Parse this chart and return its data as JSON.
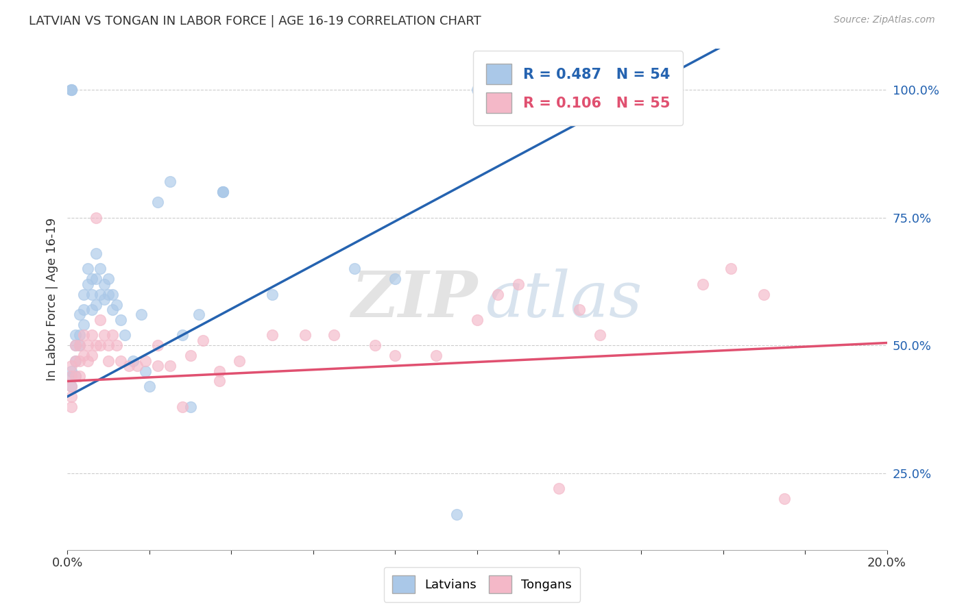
{
  "title": "LATVIAN VS TONGAN IN LABOR FORCE | AGE 16-19 CORRELATION CHART",
  "source": "Source: ZipAtlas.com",
  "ylabel": "In Labor Force | Age 16-19",
  "xlim": [
    0.0,
    0.2
  ],
  "ylim": [
    0.1,
    1.08
  ],
  "right_yticks": [
    1.0,
    0.75,
    0.5,
    0.25
  ],
  "right_yticklabels": [
    "100.0%",
    "75.0%",
    "50.0%",
    "25.0%"
  ],
  "latvian_R": 0.487,
  "latvian_N": 54,
  "tongan_R": 0.106,
  "tongan_N": 55,
  "latvian_color": "#aac8e8",
  "tongan_color": "#f4b8c8",
  "latvian_line_color": "#2563b0",
  "tongan_line_color": "#e05070",
  "watermark_zip": "ZIP",
  "watermark_atlas": "atlas",
  "background_color": "#ffffff",
  "latvian_x": [
    0.001,
    0.001,
    0.001,
    0.001,
    0.001,
    0.001,
    0.002,
    0.002,
    0.002,
    0.002,
    0.003,
    0.003,
    0.003,
    0.004,
    0.004,
    0.004,
    0.005,
    0.005,
    0.006,
    0.006,
    0.006,
    0.007,
    0.007,
    0.007,
    0.008,
    0.008,
    0.009,
    0.009,
    0.01,
    0.01,
    0.011,
    0.011,
    0.012,
    0.013,
    0.014,
    0.016,
    0.018,
    0.019,
    0.02,
    0.022,
    0.025,
    0.028,
    0.03,
    0.032,
    0.038,
    0.038,
    0.038,
    0.05,
    0.07,
    0.08,
    0.095,
    0.1,
    0.13,
    0.143
  ],
  "latvian_y": [
    1.0,
    1.0,
    1.0,
    0.45,
    0.44,
    0.42,
    0.52,
    0.5,
    0.47,
    0.44,
    0.56,
    0.52,
    0.5,
    0.6,
    0.57,
    0.54,
    0.65,
    0.62,
    0.63,
    0.6,
    0.57,
    0.68,
    0.63,
    0.58,
    0.65,
    0.6,
    0.62,
    0.59,
    0.63,
    0.6,
    0.6,
    0.57,
    0.58,
    0.55,
    0.52,
    0.47,
    0.56,
    0.45,
    0.42,
    0.78,
    0.82,
    0.52,
    0.38,
    0.56,
    0.8,
    0.8,
    0.8,
    0.6,
    0.65,
    0.63,
    0.17,
    1.0,
    1.0,
    1.0
  ],
  "tongan_x": [
    0.001,
    0.001,
    0.001,
    0.001,
    0.001,
    0.002,
    0.002,
    0.002,
    0.003,
    0.003,
    0.003,
    0.004,
    0.004,
    0.005,
    0.005,
    0.006,
    0.006,
    0.007,
    0.007,
    0.008,
    0.008,
    0.009,
    0.01,
    0.01,
    0.011,
    0.012,
    0.013,
    0.015,
    0.017,
    0.019,
    0.022,
    0.022,
    0.025,
    0.028,
    0.03,
    0.033,
    0.037,
    0.037,
    0.042,
    0.05,
    0.058,
    0.065,
    0.075,
    0.08,
    0.09,
    0.1,
    0.105,
    0.11,
    0.12,
    0.125,
    0.13,
    0.155,
    0.162,
    0.17,
    0.175
  ],
  "tongan_y": [
    0.46,
    0.44,
    0.42,
    0.4,
    0.38,
    0.5,
    0.47,
    0.44,
    0.5,
    0.47,
    0.44,
    0.52,
    0.48,
    0.5,
    0.47,
    0.52,
    0.48,
    0.75,
    0.5,
    0.55,
    0.5,
    0.52,
    0.5,
    0.47,
    0.52,
    0.5,
    0.47,
    0.46,
    0.46,
    0.47,
    0.5,
    0.46,
    0.46,
    0.38,
    0.48,
    0.51,
    0.45,
    0.43,
    0.47,
    0.52,
    0.52,
    0.52,
    0.5,
    0.48,
    0.48,
    0.55,
    0.6,
    0.62,
    0.22,
    0.57,
    0.52,
    0.62,
    0.65,
    0.6,
    0.2
  ]
}
